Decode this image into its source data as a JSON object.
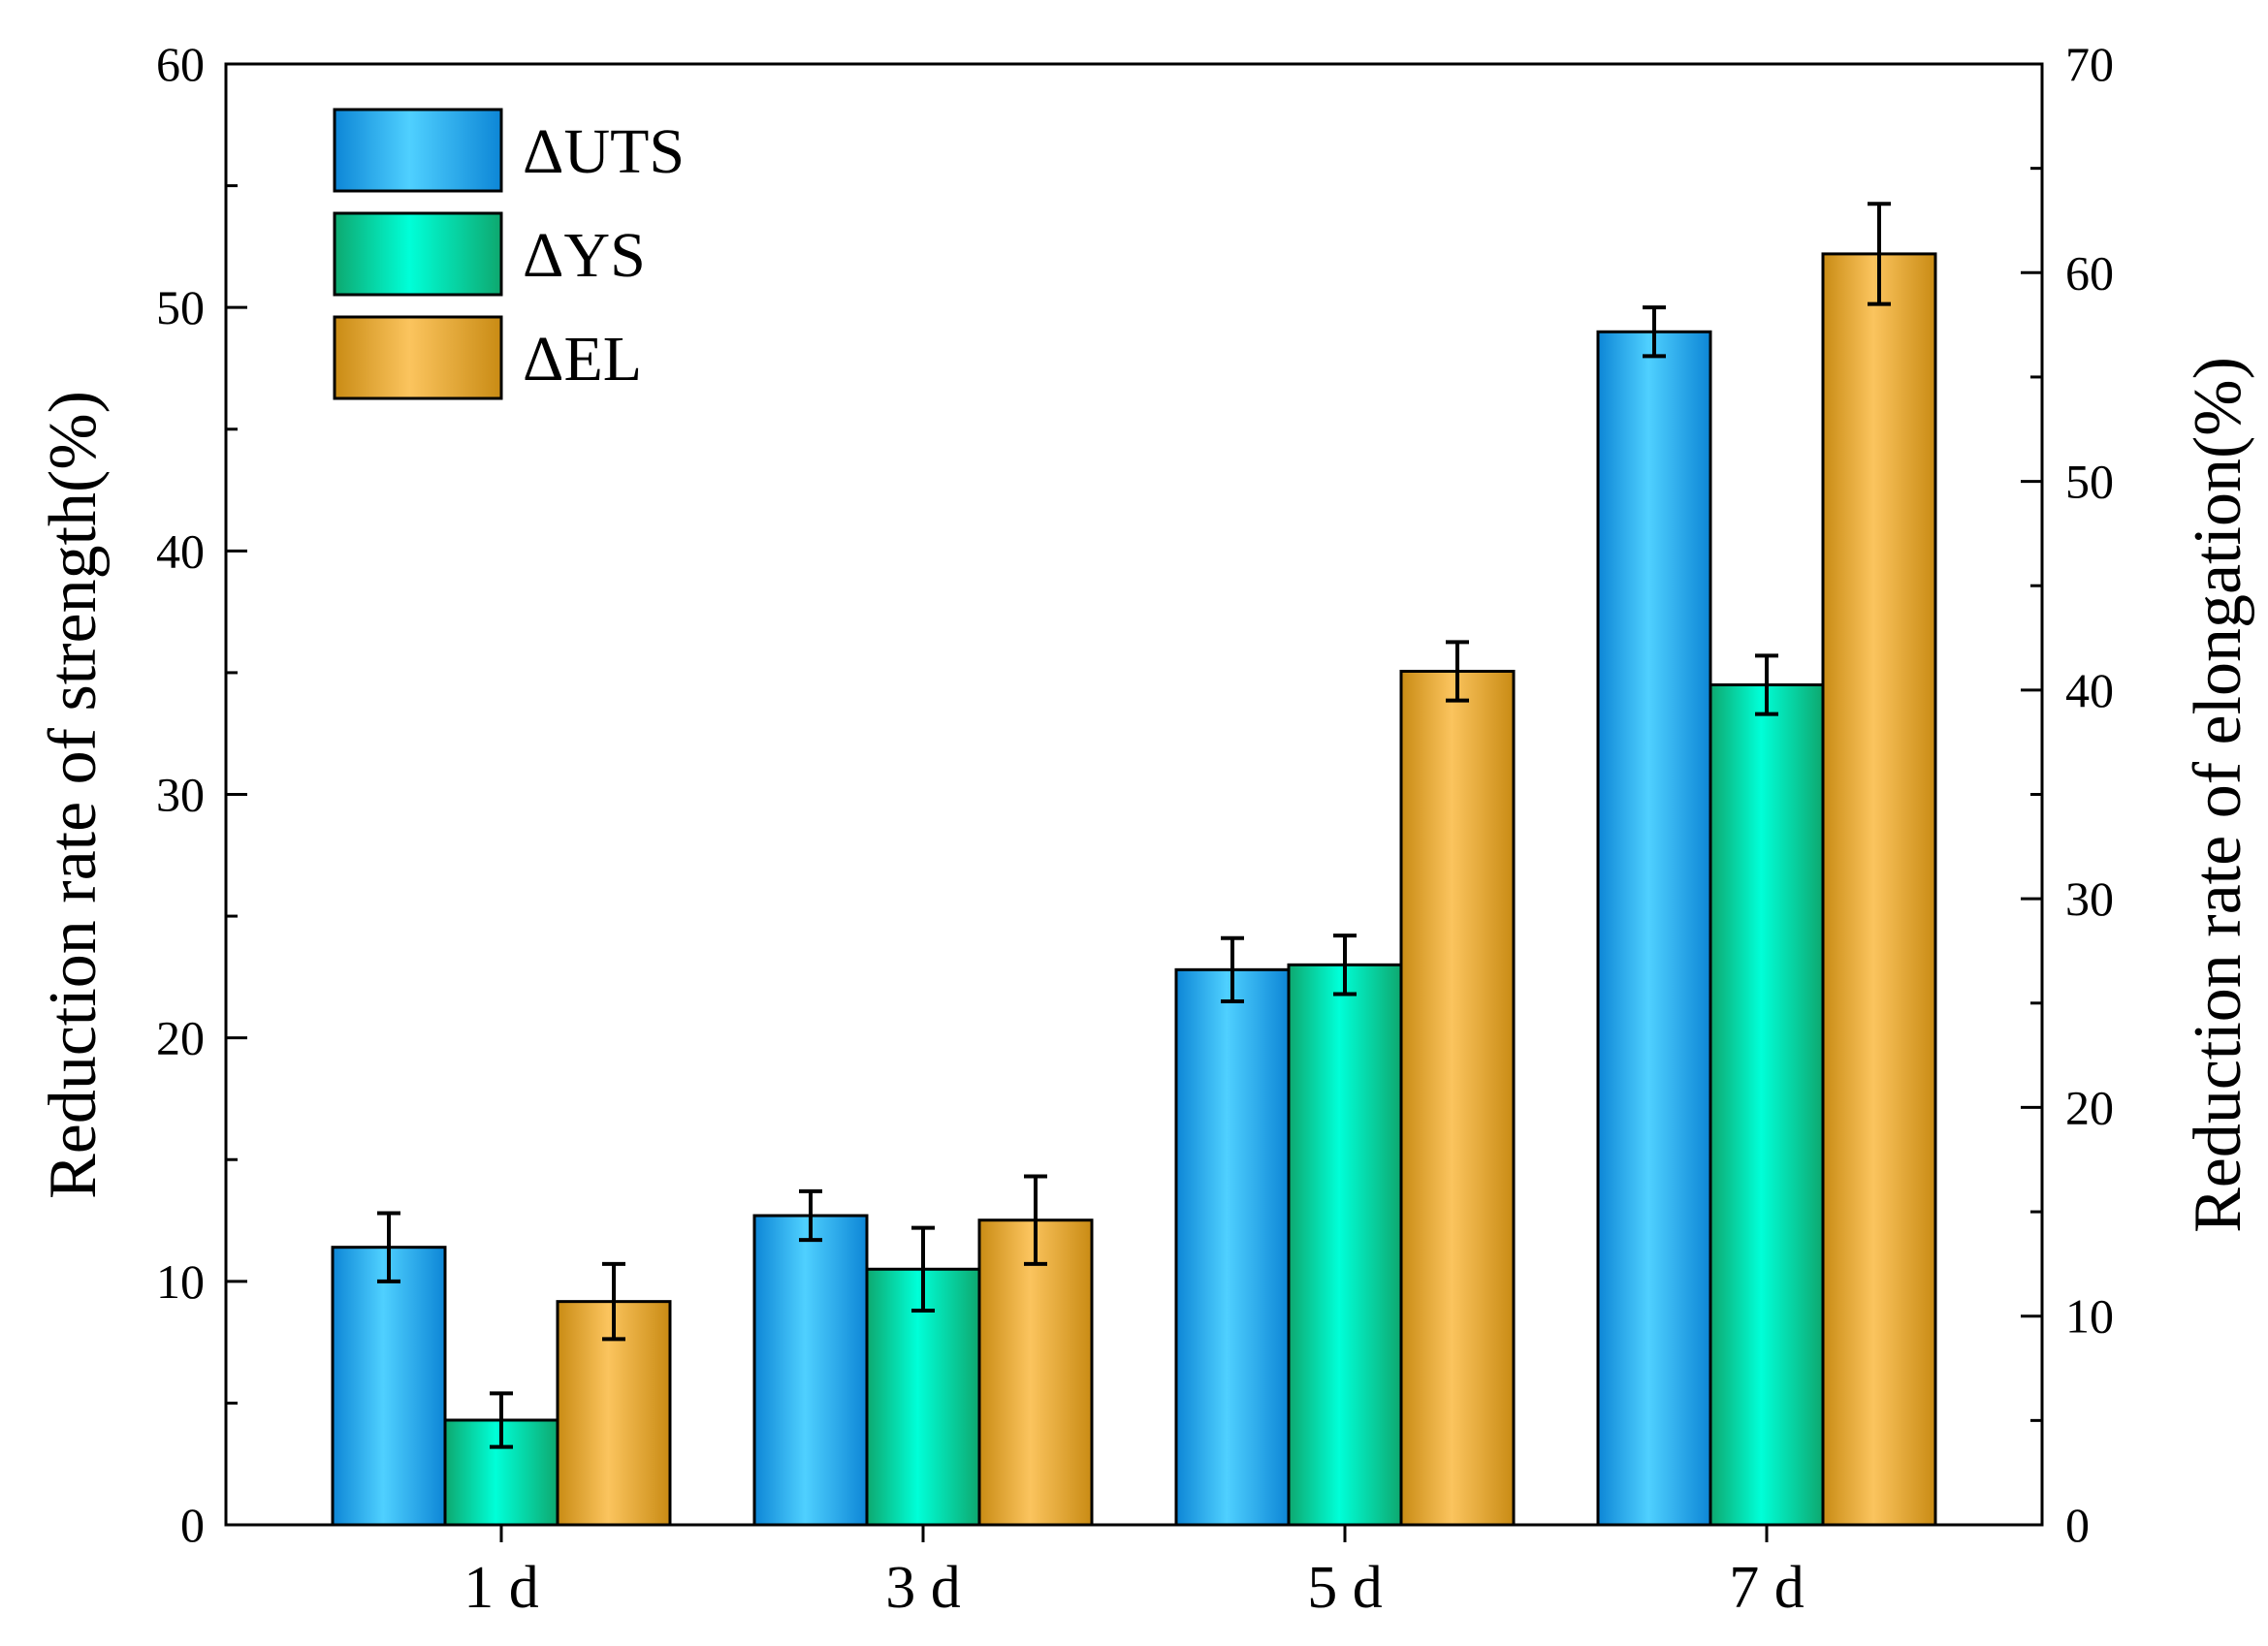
{
  "chart_data": {
    "type": "bar",
    "categories": [
      "1 d",
      "3 d",
      "5 d",
      "7 d"
    ],
    "series": [
      {
        "name": "ΔUTS",
        "axis": "left",
        "values": [
          11.4,
          12.7,
          22.8,
          49.0
        ],
        "errors": [
          1.4,
          1.0,
          1.3,
          1.0
        ],
        "color_dark": "#0d86d6",
        "color_light": "#4fd0ff"
      },
      {
        "name": "ΔYS",
        "axis": "left",
        "values": [
          4.3,
          10.5,
          23.0,
          34.5
        ],
        "errors": [
          1.1,
          1.7,
          1.2,
          1.2
        ],
        "color_dark": "#0ea86f",
        "color_light": "#00ffd8"
      },
      {
        "name": "ΔEL",
        "axis": "right",
        "values": [
          10.7,
          14.6,
          40.9,
          60.9
        ],
        "errors": [
          1.8,
          2.1,
          1.4,
          2.4
        ],
        "color_dark": "#c98b14",
        "color_light": "#fbc45e"
      }
    ],
    "ylabel": "Reduction rate of  strength(%)",
    "ylabel_right": "Reduction rate of  elongation(%)",
    "ylim": [
      0,
      60
    ],
    "ylim_right": [
      0,
      70
    ],
    "yticks": [
      "0",
      "10",
      "20",
      "30",
      "40",
      "50",
      "60"
    ],
    "yticks_right": [
      "0",
      "10",
      "20",
      "30",
      "40",
      "50",
      "60",
      "70"
    ],
    "legend_position": "top-left",
    "grid": false
  }
}
